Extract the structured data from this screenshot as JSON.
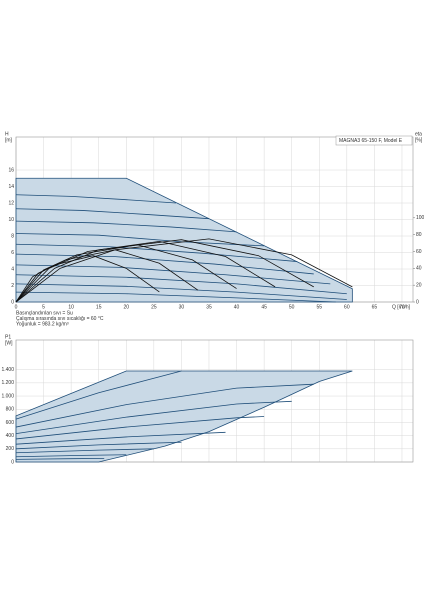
{
  "chart_data": [
    {
      "type": "line",
      "title": "MAGNA3 65-150 F, Model E",
      "y_label": [
        "H",
        "[m]"
      ],
      "y2_label": [
        "eta",
        "[%]"
      ],
      "x_label": "Q [m³/h]",
      "notes": [
        "Basınçlandırılan sıvı = Su",
        "Çalışma sırasında sıvı sıcaklığı = 60 °C",
        "Yoğunluk = 983.2 kg/m³"
      ],
      "xlim": [
        0,
        72
      ],
      "xticks": [
        0,
        5,
        10,
        15,
        20,
        25,
        30,
        35,
        40,
        45,
        50,
        55,
        60,
        65,
        70
      ],
      "ylim": [
        0,
        20
      ],
      "yticks": [
        0,
        2,
        4,
        6,
        8,
        10,
        12,
        14,
        16
      ],
      "y2lim": [
        0,
        196
      ],
      "y2ticks": [
        0,
        20,
        40,
        60,
        80,
        100
      ],
      "grid": true,
      "series": [
        {
          "color": "#1f4e79",
          "fill": "#c9d9e6",
          "x": [
            0,
            20,
            61,
            61
          ],
          "values": [
            15,
            15,
            1.6,
            0
          ]
        },
        {
          "color": "#1f4e79",
          "x": [
            0,
            10,
            20,
            29
          ],
          "values": [
            13,
            12.8,
            12.4,
            12.0
          ]
        },
        {
          "color": "#1f4e79",
          "x": [
            0,
            12,
            24,
            35
          ],
          "values": [
            11.3,
            11.1,
            10.6,
            10.1
          ]
        },
        {
          "color": "#1f4e79",
          "x": [
            0,
            14,
            28,
            40
          ],
          "values": [
            9.8,
            9.6,
            9.1,
            8.5
          ]
        },
        {
          "color": "#1f4e79",
          "x": [
            0,
            15,
            30,
            45
          ],
          "values": [
            8.3,
            8.1,
            7.3,
            6.8
          ]
        },
        {
          "color": "#1f4e79",
          "x": [
            0,
            17,
            34,
            51
          ],
          "values": [
            7,
            6.7,
            5.9,
            4.9
          ]
        },
        {
          "color": "#1f4e79",
          "x": [
            0,
            18,
            36,
            54
          ],
          "values": [
            5.8,
            5.5,
            4.6,
            3.4
          ]
        },
        {
          "color": "#1f4e79",
          "x": [
            0,
            19,
            38,
            57
          ],
          "values": [
            4.5,
            4.2,
            3.3,
            2.2
          ]
        },
        {
          "color": "#1f4e79",
          "x": [
            0,
            20,
            40,
            60
          ],
          "values": [
            3.3,
            3.0,
            2.2,
            1.0
          ]
        },
        {
          "color": "#1f4e79",
          "x": [
            0,
            20,
            40,
            60
          ],
          "values": [
            2.2,
            1.9,
            1.2,
            0.3
          ]
        },
        {
          "color": "#1f4e79",
          "x": [
            0,
            20,
            40,
            58
          ],
          "values": [
            1.2,
            1.0,
            0.5,
            0
          ]
        },
        {
          "color": "#111111",
          "axis": "y2",
          "x": [
            0,
            8,
            18,
            35,
            50,
            61
          ],
          "values": [
            0,
            40,
            62,
            75,
            56,
            18
          ]
        },
        {
          "color": "#111111",
          "axis": "y2",
          "x": [
            0,
            7,
            15,
            30,
            44,
            54
          ],
          "values": [
            0,
            40,
            62,
            74,
            55,
            18
          ]
        },
        {
          "color": "#111111",
          "axis": "y2",
          "x": [
            0,
            6,
            13,
            26,
            38,
            47
          ],
          "values": [
            0,
            40,
            60,
            72,
            54,
            18
          ]
        },
        {
          "color": "#111111",
          "axis": "y2",
          "x": [
            0,
            5,
            11,
            22,
            32,
            40
          ],
          "values": [
            0,
            38,
            56,
            68,
            50,
            16
          ]
        },
        {
          "color": "#111111",
          "axis": "y2",
          "x": [
            0,
            4,
            9,
            18,
            26,
            33
          ],
          "values": [
            0,
            34,
            50,
            62,
            46,
            14
          ]
        },
        {
          "color": "#111111",
          "axis": "y2",
          "x": [
            0,
            3,
            7,
            14,
            20,
            26
          ],
          "values": [
            0,
            30,
            44,
            55,
            40,
            12
          ]
        }
      ]
    },
    {
      "type": "line",
      "y_label": [
        "P1",
        "[W]"
      ],
      "xlim": [
        0,
        72
      ],
      "ylim": [
        0,
        1850
      ],
      "yticks": [
        0,
        200,
        400,
        600,
        800,
        {
          "value": 1000,
          "label": "1.000"
        },
        {
          "value": 1200,
          "label": "1.200"
        },
        {
          "value": 1400,
          "label": "1.400"
        }
      ],
      "grid": true,
      "series": [
        {
          "color": "#1f4e79",
          "fill": "#c9d9e6",
          "x": [
            0,
            20,
            61,
            55,
            45,
            35,
            27,
            20,
            15
          ],
          "values": [
            700,
            1380,
            1380,
            1220,
            830,
            460,
            240,
            100,
            0
          ]
        },
        {
          "color": "#1f4e79",
          "x": [
            0,
            15,
            30
          ],
          "values": [
            650,
            1050,
            1380
          ]
        },
        {
          "color": "#1f4e79",
          "x": [
            0,
            20,
            40,
            54
          ],
          "values": [
            530,
            870,
            1120,
            1180
          ]
        },
        {
          "color": "#1f4e79",
          "x": [
            0,
            20,
            40,
            50
          ],
          "values": [
            430,
            680,
            880,
            920
          ]
        },
        {
          "color": "#1f4e79",
          "x": [
            0,
            20,
            40,
            45
          ],
          "values": [
            350,
            530,
            670,
            690
          ]
        },
        {
          "color": "#1f4e79",
          "x": [
            0,
            20,
            38
          ],
          "values": [
            270,
            380,
            450
          ]
        },
        {
          "color": "#1f4e79",
          "x": [
            0,
            15,
            30
          ],
          "values": [
            200,
            260,
            300
          ]
        },
        {
          "color": "#1f4e79",
          "x": [
            0,
            15,
            25
          ],
          "values": [
            140,
            180,
            200
          ]
        },
        {
          "color": "#1f4e79",
          "x": [
            0,
            12,
            20
          ],
          "values": [
            80,
            100,
            110
          ]
        },
        {
          "color": "#1f4e79",
          "x": [
            0,
            10,
            16
          ],
          "values": [
            40,
            50,
            55
          ]
        }
      ]
    }
  ]
}
